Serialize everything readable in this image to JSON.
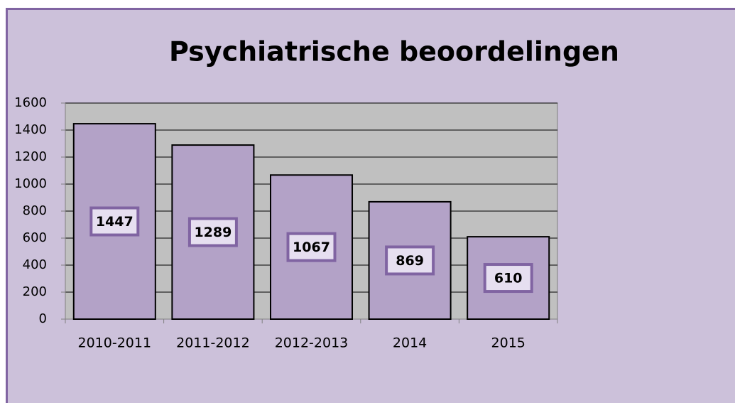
{
  "chart_data": {
    "type": "bar",
    "title": "Psychiatrische beoordelingen",
    "categories": [
      "2010-2011",
      "2011-2012",
      "2012-2013",
      "2014",
      "2015"
    ],
    "values": [
      1447,
      1289,
      1067,
      869,
      610
    ],
    "color": "#b3a2c7",
    "ylim": [
      0,
      1600
    ],
    "yticks": [
      0,
      200,
      400,
      600,
      800,
      1000,
      1200,
      1400,
      1600
    ],
    "grid": true
  }
}
